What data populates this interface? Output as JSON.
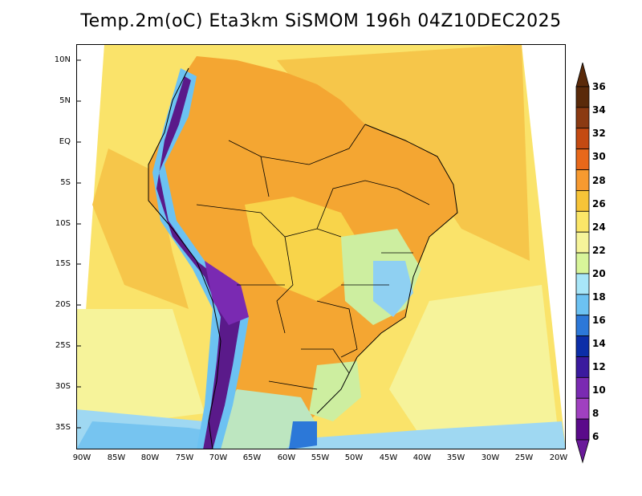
{
  "title": "Temp.2m(oC) Eta3km SiSMOM 196h 04Z10DEC2025",
  "lat_labels": [
    "10N",
    "5N",
    "EQ",
    "5S",
    "10S",
    "15S",
    "20S",
    "25S",
    "30S",
    "35S"
  ],
  "lon_labels": [
    "90W",
    "85W",
    "80W",
    "75W",
    "70W",
    "65W",
    "60W",
    "55W",
    "50W",
    "45W",
    "40W",
    "35W",
    "30W",
    "25W",
    "20W"
  ],
  "colorbar": {
    "labels": [
      "36",
      "34",
      "32",
      "30",
      "28",
      "26",
      "24",
      "22",
      "20",
      "18",
      "16",
      "14",
      "12",
      "10",
      "8",
      "6"
    ],
    "colors": [
      "#5a2a0a",
      "#8b3a12",
      "#c44a12",
      "#e8681a",
      "#f79a30",
      "#f7c438",
      "#fbe668",
      "#f6f49a",
      "#d8f59a",
      "#a8e6f8",
      "#6cc2f2",
      "#2c78d8",
      "#0c2ea8",
      "#3a1a9e",
      "#7a2ab2",
      "#a040c0",
      "#5a0a8a"
    ],
    "top_arrow_color": "#5a2a0a",
    "bottom_arrow_color": "#6a1a9a"
  },
  "palette": {
    "ocean_warm": "#f6c64a",
    "ocean_mid": "#fae36a",
    "ocean_cool": "#f3f29c",
    "cold_blue": "#76c4f0",
    "andes_purple": "#5a1a8a",
    "land_orange": "#f4a632"
  }
}
